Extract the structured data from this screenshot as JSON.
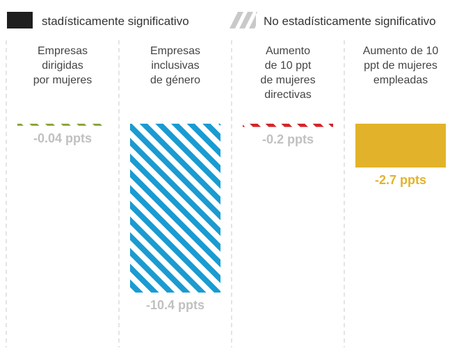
{
  "legend": {
    "significant": "stadísticamente significativo",
    "not_significant": "No estadísticamente significativo"
  },
  "chart_data": {
    "type": "bar",
    "title": "",
    "xlabel": "",
    "ylabel": "",
    "categories": [
      [
        "Empresas",
        "dirigidas",
        "por mujeres"
      ],
      [
        "Empresas",
        "inclusivas",
        "de género"
      ],
      [
        "Aumento",
        "de 10 ppt",
        "de mujeres",
        "directivas"
      ],
      [
        "Aumento de 10",
        "ppt de mujeres",
        "empleadas"
      ]
    ],
    "values": [
      -0.04,
      -10.4,
      -0.2,
      -2.7
    ],
    "value_labels": [
      "-0.04 ppts",
      "-10.4 ppts",
      "-0.2 ppts",
      "-2.7 ppts"
    ],
    "significant": [
      false,
      false,
      false,
      true
    ],
    "colors": [
      "#8aa63a",
      "#1a9bd1",
      "#d0262a",
      "#e2b32a"
    ],
    "label_colors": [
      "#c0c0c0",
      "#c0c0c0",
      "#c0c0c0",
      "#e2b32a"
    ],
    "ylim": [
      -10.4,
      0
    ],
    "grid": false,
    "legend_position": "top"
  }
}
